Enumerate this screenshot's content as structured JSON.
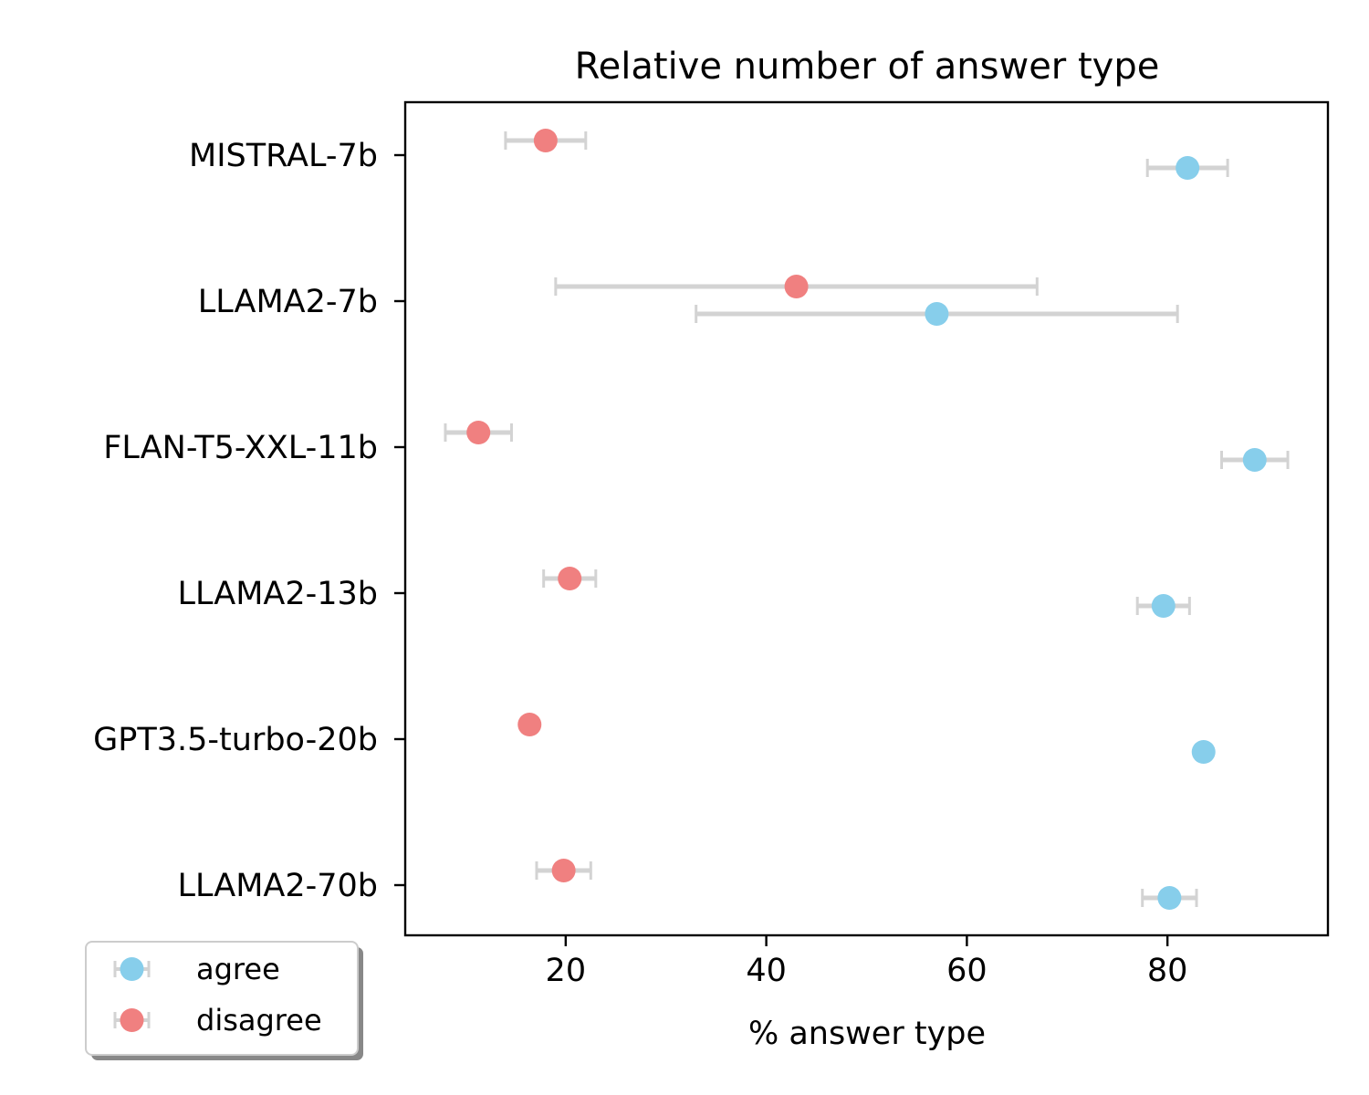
{
  "chart_data": {
    "type": "scatter",
    "title": "Relative number of answer type",
    "xlabel": "% answer type",
    "ylabel": "",
    "xlim": [
      4,
      96
    ],
    "xticks": [
      20,
      40,
      60,
      80
    ],
    "categories": [
      "MISTRAL-7b",
      "LLAMA2-7b",
      "FLAN-T5-XXL-11b",
      "LLAMA2-13b",
      "GPT3.5-turbo-20b",
      "LLAMA2-70b"
    ],
    "grid": false,
    "legend_position": "lower-left outside",
    "error_bar_color": "#d3d3d3",
    "series": [
      {
        "name": "agree",
        "color": "#87ceeb",
        "values": [
          82,
          57,
          88.7,
          79.6,
          83.6,
          80.2
        ],
        "errors": [
          4,
          24,
          3.3,
          2.6,
          0,
          2.7
        ]
      },
      {
        "name": "disagree",
        "color": "#f08080",
        "values": [
          18,
          43,
          11.3,
          20.4,
          16.4,
          19.8
        ],
        "errors": [
          4,
          24,
          3.3,
          2.6,
          0,
          2.7
        ]
      }
    ]
  }
}
